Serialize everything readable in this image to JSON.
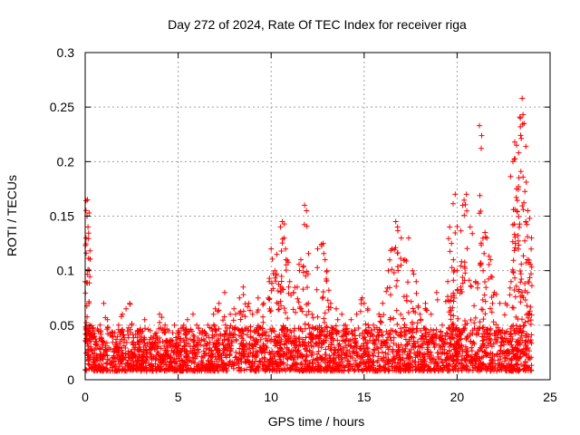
{
  "chart_data": {
    "type": "scatter",
    "title": "Day 272 of 2024, Rate Of TEC Index for receiver riga",
    "xlabel": "GPS time / hours",
    "ylabel": "ROTI / TECUs",
    "xlim": [
      0,
      25
    ],
    "ylim": [
      0,
      0.3
    ],
    "x_ticks": [
      0,
      5,
      10,
      15,
      20,
      25
    ],
    "x_tick_labels": [
      "0",
      "5",
      "10",
      "15",
      "20",
      "25"
    ],
    "y_ticks": [
      0,
      0.05,
      0.1,
      0.15,
      0.2,
      0.25,
      0.3
    ],
    "y_tick_labels": [
      "0",
      "0.05",
      "0.1",
      "0.15",
      "0.2",
      "0.25",
      "0.3"
    ],
    "grid": true,
    "marker": "+",
    "marker_color": "#ff0000",
    "series": [
      {
        "x": [
          0.0,
          0.05,
          0.1,
          0.12,
          0.15,
          0.2,
          0.25,
          0.3,
          0.4,
          0.5,
          0.6,
          0.8,
          1.0,
          1.2,
          1.5,
          1.8,
          2.0,
          2.2,
          2.4,
          2.5,
          2.8,
          3.0,
          3.2,
          3.5,
          3.8,
          4.0,
          4.3,
          4.5,
          4.8,
          5.0,
          5.3,
          5.5,
          5.8,
          6.0,
          6.3,
          6.6,
          6.9,
          7.0,
          7.2,
          7.5,
          7.8,
          8.0,
          8.3,
          8.5,
          8.8,
          9.0,
          9.3,
          9.6,
          9.9,
          10.0,
          10.2,
          10.3,
          10.5,
          10.6,
          10.7,
          10.8,
          11.0,
          11.2,
          11.4,
          11.6,
          11.8,
          11.9,
          12.0,
          12.2,
          12.5,
          12.8,
          12.9,
          13.0,
          13.2,
          13.5,
          13.8,
          14.0,
          14.3,
          14.6,
          14.9,
          15.0,
          15.2,
          15.5,
          15.8,
          16.0,
          16.3,
          16.5,
          16.7,
          16.8,
          17.0,
          17.2,
          17.4,
          17.6,
          17.8,
          18.0,
          18.3,
          18.6,
          18.9,
          19.2,
          19.5,
          19.6,
          19.7,
          19.8,
          19.9,
          20.0,
          20.2,
          20.3,
          20.5,
          20.7,
          21.0,
          21.2,
          21.4,
          21.5,
          21.6,
          21.8,
          22.0,
          22.3,
          22.6,
          22.9,
          23.0,
          23.1,
          23.2,
          23.3,
          23.4,
          23.5,
          23.6,
          23.7,
          23.8,
          23.9,
          24.0
        ],
        "y": [
          0.09,
          0.13,
          0.15,
          0.165,
          0.14,
          0.07,
          0.05,
          0.03,
          0.045,
          0.04,
          0.035,
          0.05,
          0.07,
          0.055,
          0.04,
          0.05,
          0.06,
          0.065,
          0.07,
          0.05,
          0.045,
          0.04,
          0.055,
          0.045,
          0.04,
          0.06,
          0.05,
          0.045,
          0.05,
          0.045,
          0.05,
          0.055,
          0.06,
          0.05,
          0.045,
          0.05,
          0.06,
          0.065,
          0.07,
          0.08,
          0.06,
          0.065,
          0.075,
          0.085,
          0.07,
          0.06,
          0.075,
          0.07,
          0.09,
          0.12,
          0.1,
          0.115,
          0.14,
          0.145,
          0.13,
          0.11,
          0.09,
          0.08,
          0.085,
          0.11,
          0.16,
          0.155,
          0.07,
          0.06,
          0.12,
          0.125,
          0.11,
          0.1,
          0.07,
          0.065,
          0.06,
          0.05,
          0.055,
          0.06,
          0.075,
          0.07,
          0.065,
          0.05,
          0.06,
          0.07,
          0.1,
          0.12,
          0.145,
          0.14,
          0.13,
          0.11,
          0.13,
          0.1,
          0.09,
          0.06,
          0.07,
          0.06,
          0.08,
          0.05,
          0.09,
          0.14,
          0.125,
          0.11,
          0.17,
          0.1,
          0.085,
          0.16,
          0.17,
          0.14,
          0.09,
          0.233,
          0.1,
          0.135,
          0.13,
          0.11,
          0.08,
          0.07,
          0.07,
          0.09,
          0.2,
          0.218,
          0.215,
          0.177,
          0.24,
          0.258,
          0.235,
          0.145,
          0.155,
          0.148,
          0.13
        ]
      }
    ]
  }
}
